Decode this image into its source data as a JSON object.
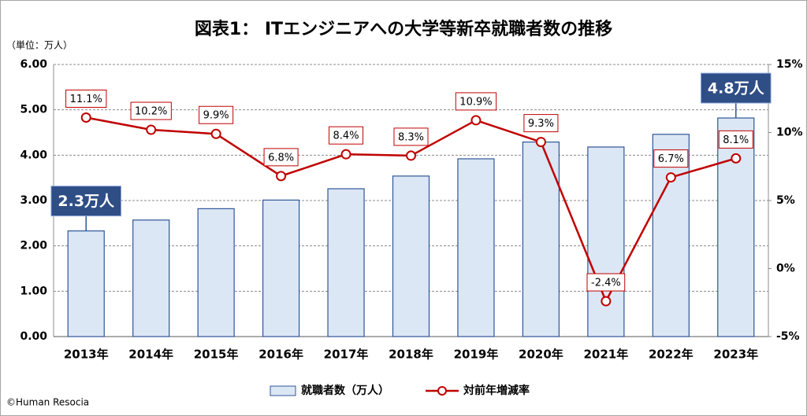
{
  "chart_data": {
    "type": "bar-line",
    "title": "図表1： ITエンジニアへの大学等新卒就職者数の推移",
    "y_axis_label": "（単位：万人）",
    "source": "©Human Resocia",
    "categories": [
      "2013年",
      "2014年",
      "2015年",
      "2016年",
      "2017年",
      "2018年",
      "2019年",
      "2020年",
      "2021年",
      "2022年",
      "2023年"
    ],
    "series": [
      {
        "name": "就職者数（万人）",
        "type": "bar",
        "color": "#dce7f5",
        "edge_color": "#2f5597",
        "values": [
          2.33,
          2.57,
          2.82,
          3.01,
          3.26,
          3.54,
          3.92,
          4.29,
          4.18,
          4.46,
          4.82
        ],
        "value_labels": [
          "2.3万人",
          null,
          null,
          null,
          null,
          null,
          null,
          null,
          null,
          null,
          "4.8万人"
        ]
      },
      {
        "name": "対前年増減率",
        "type": "line",
        "axis": "y2",
        "color": "#c00000",
        "values": [
          11.1,
          10.2,
          9.9,
          6.8,
          8.4,
          8.3,
          10.9,
          9.3,
          -2.4,
          6.7,
          8.1
        ],
        "value_labels": [
          "11.1%",
          "10.2%",
          "9.9%",
          "6.8%",
          "8.4%",
          "8.3%",
          "10.9%",
          "9.3%",
          "-2.4%",
          "6.7%",
          "8.1%"
        ]
      }
    ],
    "ylim": [
      0,
      6
    ],
    "yticks": [
      {
        "value": 0,
        "label": "0.00"
      },
      {
        "value": 1,
        "label": "1.00"
      },
      {
        "value": 2,
        "label": "2.00"
      },
      {
        "value": 3,
        "label": "3.00"
      },
      {
        "value": 4,
        "label": "4.00"
      },
      {
        "value": 5,
        "label": "5.00"
      },
      {
        "value": 6,
        "label": "6.00"
      }
    ],
    "y2lim": [
      -5,
      15
    ],
    "y2ticks": [
      {
        "value": -5,
        "label": "-5%"
      },
      {
        "value": 0,
        "label": "0%"
      },
      {
        "value": 5,
        "label": "5%"
      },
      {
        "value": 10,
        "label": "10%"
      },
      {
        "value": 15,
        "label": "15%"
      }
    ],
    "grid": true,
    "legend": "bottom"
  }
}
